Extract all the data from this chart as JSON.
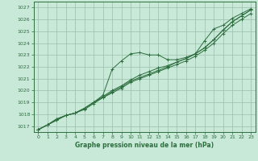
{
  "bg_color": "#c8e8d8",
  "plot_bg_color": "#c8e8d8",
  "grid_color": "#9bbfac",
  "line_color": "#2d6e3e",
  "xlabel": "Graphe pression niveau de la mer (hPa)",
  "ylim": [
    1016.5,
    1027.5
  ],
  "xlim": [
    -0.5,
    23.5
  ],
  "yticks": [
    1017,
    1018,
    1019,
    1020,
    1021,
    1022,
    1023,
    1024,
    1025,
    1026,
    1027
  ],
  "xticks": [
    0,
    1,
    2,
    3,
    4,
    5,
    6,
    7,
    8,
    9,
    10,
    11,
    12,
    13,
    14,
    15,
    16,
    17,
    18,
    19,
    20,
    21,
    22,
    23
  ],
  "series": [
    [
      1016.7,
      1017.1,
      1017.6,
      1017.9,
      1018.1,
      1018.5,
      1019.0,
      1019.6,
      1021.8,
      1022.5,
      1023.1,
      1023.2,
      1023.0,
      1023.0,
      1022.6,
      1022.6,
      1022.8,
      1023.1,
      1024.2,
      1025.2,
      1025.5,
      1026.1,
      1026.5,
      1026.9
    ],
    [
      1016.7,
      1017.1,
      1017.6,
      1017.9,
      1018.1,
      1018.5,
      1019.0,
      1019.5,
      1020.0,
      1020.4,
      1020.9,
      1021.3,
      1021.6,
      1021.9,
      1022.1,
      1022.4,
      1022.7,
      1023.1,
      1023.6,
      1024.3,
      1025.1,
      1025.8,
      1026.3,
      1026.8
    ],
    [
      1016.7,
      1017.1,
      1017.5,
      1017.9,
      1018.1,
      1018.4,
      1018.9,
      1019.4,
      1019.8,
      1020.2,
      1020.7,
      1021.0,
      1021.3,
      1021.6,
      1021.9,
      1022.2,
      1022.5,
      1022.9,
      1023.4,
      1024.0,
      1024.8,
      1025.5,
      1026.0,
      1026.5
    ],
    [
      1016.7,
      1017.1,
      1017.5,
      1017.9,
      1018.1,
      1018.5,
      1019.0,
      1019.4,
      1019.9,
      1020.3,
      1020.8,
      1021.1,
      1021.4,
      1021.7,
      1022.0,
      1022.4,
      1022.7,
      1023.1,
      1023.6,
      1024.3,
      1025.1,
      1025.8,
      1026.3,
      1026.8
    ]
  ]
}
